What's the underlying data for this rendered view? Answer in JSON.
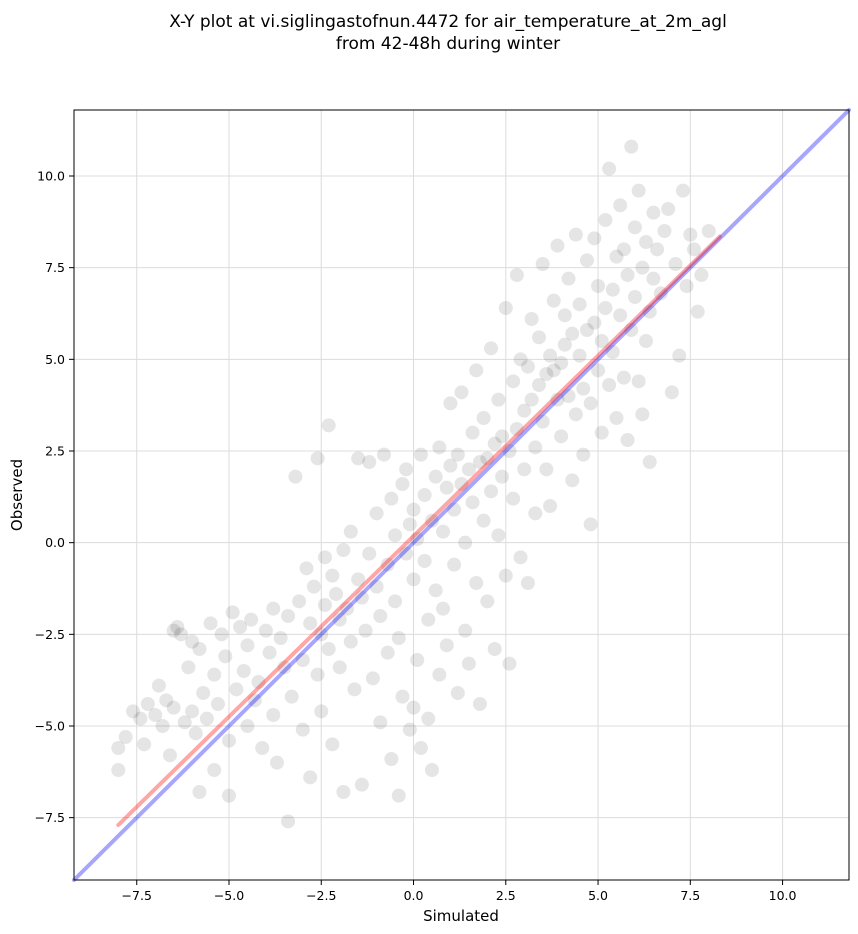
{
  "chart_data": {
    "type": "scatter",
    "title": "X-Y plot at vi.siglingastofnun.4472 for air_temperature_at_2m_agl",
    "subtitle": "from 42-48h during winter",
    "xlabel": "Simulated",
    "ylabel": "Observed",
    "xlim": [
      -9.2,
      11.8
    ],
    "ylim": [
      -9.2,
      11.8
    ],
    "x_ticks": [
      "−7.5",
      "−5.0",
      "−2.5",
      "0.0",
      "2.5",
      "5.0",
      "7.5",
      "10.0"
    ],
    "y_ticks": [
      "−7.5",
      "−5.0",
      "−2.5",
      "0.0",
      "2.5",
      "5.0",
      "7.5",
      "10.0"
    ],
    "x_tick_values": [
      -7.5,
      -5.0,
      -2.5,
      0.0,
      2.5,
      5.0,
      7.5,
      10.0
    ],
    "y_tick_values": [
      -7.5,
      -5.0,
      -2.5,
      0.0,
      2.5,
      5.0,
      7.5,
      10.0
    ],
    "grid": true,
    "point_color": "#000000",
    "point_alpha": 0.1,
    "lines": [
      {
        "color": "#0000ff",
        "alpha": 0.35,
        "x": [
          -9.2,
          11.8
        ],
        "y": [
          -9.2,
          11.8
        ]
      },
      {
        "color": "#ff0000",
        "alpha": 0.35,
        "x": [
          -8.0,
          8.3
        ],
        "y": [
          -7.7,
          8.35
        ]
      }
    ],
    "series": [
      {
        "values": [
          {
            "x": -8.0,
            "y": -5.6
          },
          {
            "x": -8.0,
            "y": -6.2
          },
          {
            "x": -7.8,
            "y": -5.3
          },
          {
            "x": -7.6,
            "y": -4.6
          },
          {
            "x": -7.4,
            "y": -4.8
          },
          {
            "x": -7.2,
            "y": -4.4
          },
          {
            "x": -7.3,
            "y": -5.5
          },
          {
            "x": -7.0,
            "y": -4.7
          },
          {
            "x": -6.9,
            "y": -3.9
          },
          {
            "x": -6.8,
            "y": -5.0
          },
          {
            "x": -6.7,
            "y": -4.3
          },
          {
            "x": -6.6,
            "y": -5.8
          },
          {
            "x": -6.5,
            "y": -4.5
          },
          {
            "x": -6.5,
            "y": -2.4
          },
          {
            "x": -6.4,
            "y": -2.3
          },
          {
            "x": -6.3,
            "y": -2.5
          },
          {
            "x": -6.2,
            "y": -4.9
          },
          {
            "x": -6.1,
            "y": -3.4
          },
          {
            "x": -6.0,
            "y": -2.7
          },
          {
            "x": -6.0,
            "y": -4.6
          },
          {
            "x": -5.9,
            "y": -5.2
          },
          {
            "x": -5.8,
            "y": -2.9
          },
          {
            "x": -5.8,
            "y": -6.8
          },
          {
            "x": -5.7,
            "y": -4.1
          },
          {
            "x": -5.6,
            "y": -4.8
          },
          {
            "x": -5.5,
            "y": -2.2
          },
          {
            "x": -5.4,
            "y": -3.6
          },
          {
            "x": -5.4,
            "y": -6.2
          },
          {
            "x": -5.3,
            "y": -4.4
          },
          {
            "x": -5.2,
            "y": -2.5
          },
          {
            "x": -5.1,
            "y": -3.1
          },
          {
            "x": -5.0,
            "y": -5.4
          },
          {
            "x": -5.0,
            "y": -6.9
          },
          {
            "x": -4.9,
            "y": -1.9
          },
          {
            "x": -4.8,
            "y": -4.0
          },
          {
            "x": -4.7,
            "y": -2.3
          },
          {
            "x": -4.6,
            "y": -3.5
          },
          {
            "x": -4.5,
            "y": -5.0
          },
          {
            "x": -4.5,
            "y": -2.8
          },
          {
            "x": -4.4,
            "y": -2.1
          },
          {
            "x": -4.3,
            "y": -4.3
          },
          {
            "x": -4.2,
            "y": -3.8
          },
          {
            "x": -4.1,
            "y": -5.6
          },
          {
            "x": -4.0,
            "y": -2.4
          },
          {
            "x": -3.9,
            "y": -3.0
          },
          {
            "x": -3.8,
            "y": -1.8
          },
          {
            "x": -3.8,
            "y": -4.7
          },
          {
            "x": -3.7,
            "y": -6.0
          },
          {
            "x": -3.6,
            "y": -2.6
          },
          {
            "x": -3.5,
            "y": -3.4
          },
          {
            "x": -3.4,
            "y": -2.0
          },
          {
            "x": -3.4,
            "y": -7.6
          },
          {
            "x": -3.3,
            "y": -4.2
          },
          {
            "x": -3.2,
            "y": 1.8
          },
          {
            "x": -3.1,
            "y": -1.6
          },
          {
            "x": -3.0,
            "y": -3.2
          },
          {
            "x": -3.0,
            "y": -5.1
          },
          {
            "x": -2.9,
            "y": -0.7
          },
          {
            "x": -2.8,
            "y": -2.2
          },
          {
            "x": -2.8,
            "y": -6.4
          },
          {
            "x": -2.7,
            "y": -1.2
          },
          {
            "x": -2.6,
            "y": -3.6
          },
          {
            "x": -2.6,
            "y": 2.3
          },
          {
            "x": -2.5,
            "y": -2.5
          },
          {
            "x": -2.5,
            "y": -4.6
          },
          {
            "x": -2.4,
            "y": -0.4
          },
          {
            "x": -2.4,
            "y": -1.7
          },
          {
            "x": -2.3,
            "y": 3.2
          },
          {
            "x": -2.3,
            "y": -2.9
          },
          {
            "x": -2.2,
            "y": -0.9
          },
          {
            "x": -2.2,
            "y": -5.5
          },
          {
            "x": -2.1,
            "y": -1.4
          },
          {
            "x": -2.0,
            "y": -3.4
          },
          {
            "x": -2.0,
            "y": -2.1
          },
          {
            "x": -1.9,
            "y": -0.2
          },
          {
            "x": -1.9,
            "y": -6.8
          },
          {
            "x": -1.8,
            "y": -1.8
          },
          {
            "x": -1.7,
            "y": -2.7
          },
          {
            "x": -1.7,
            "y": 0.3
          },
          {
            "x": -1.6,
            "y": -4.0
          },
          {
            "x": -1.5,
            "y": -1.0
          },
          {
            "x": -1.5,
            "y": 2.3
          },
          {
            "x": -1.4,
            "y": -1.5
          },
          {
            "x": -1.4,
            "y": -6.6
          },
          {
            "x": -1.3,
            "y": -2.4
          },
          {
            "x": -1.2,
            "y": -0.3
          },
          {
            "x": -1.2,
            "y": 2.2
          },
          {
            "x": -1.1,
            "y": -3.7
          },
          {
            "x": -1.0,
            "y": -1.2
          },
          {
            "x": -1.0,
            "y": 0.8
          },
          {
            "x": -0.9,
            "y": -2.0
          },
          {
            "x": -0.9,
            "y": -4.9
          },
          {
            "x": -0.8,
            "y": 2.4
          },
          {
            "x": -0.7,
            "y": -0.6
          },
          {
            "x": -0.7,
            "y": -3.0
          },
          {
            "x": -0.6,
            "y": 1.2
          },
          {
            "x": -0.6,
            "y": -5.9
          },
          {
            "x": -0.5,
            "y": -1.6
          },
          {
            "x": -0.5,
            "y": 0.2
          },
          {
            "x": -0.4,
            "y": -2.6
          },
          {
            "x": -0.4,
            "y": -6.9
          },
          {
            "x": -0.3,
            "y": 1.6
          },
          {
            "x": -0.3,
            "y": -4.2
          },
          {
            "x": -0.2,
            "y": -0.3
          },
          {
            "x": -0.2,
            "y": 2.0
          },
          {
            "x": -0.1,
            "y": 0.5
          },
          {
            "x": -0.1,
            "y": -5.1
          },
          {
            "x": 0.0,
            "y": -1.0
          },
          {
            "x": 0.0,
            "y": 0.9
          },
          {
            "x": 0.0,
            "y": -4.5
          },
          {
            "x": 0.1,
            "y": 0.1
          },
          {
            "x": 0.1,
            "y": -3.2
          },
          {
            "x": 0.2,
            "y": 2.4
          },
          {
            "x": 0.2,
            "y": -5.6
          },
          {
            "x": 0.3,
            "y": -0.5
          },
          {
            "x": 0.3,
            "y": 1.3
          },
          {
            "x": 0.4,
            "y": -2.1
          },
          {
            "x": 0.4,
            "y": -4.8
          },
          {
            "x": 0.5,
            "y": 0.6
          },
          {
            "x": 0.5,
            "y": -6.2
          },
          {
            "x": 0.6,
            "y": 1.8
          },
          {
            "x": 0.6,
            "y": -1.3
          },
          {
            "x": 0.7,
            "y": 2.6
          },
          {
            "x": 0.7,
            "y": -3.6
          },
          {
            "x": 0.8,
            "y": 0.3
          },
          {
            "x": 0.8,
            "y": -1.8
          },
          {
            "x": 0.9,
            "y": 1.5
          },
          {
            "x": 0.9,
            "y": -2.8
          },
          {
            "x": 1.0,
            "y": 2.1
          },
          {
            "x": 1.0,
            "y": 3.8
          },
          {
            "x": 1.1,
            "y": 0.9
          },
          {
            "x": 1.1,
            "y": -0.6
          },
          {
            "x": 1.2,
            "y": 2.4
          },
          {
            "x": 1.2,
            "y": -4.1
          },
          {
            "x": 1.3,
            "y": 1.6
          },
          {
            "x": 1.3,
            "y": 4.1
          },
          {
            "x": 1.4,
            "y": 0.0
          },
          {
            "x": 1.4,
            "y": -2.4
          },
          {
            "x": 1.5,
            "y": 2.0
          },
          {
            "x": 1.5,
            "y": -3.3
          },
          {
            "x": 1.6,
            "y": 3.0
          },
          {
            "x": 1.6,
            "y": 1.1
          },
          {
            "x": 1.7,
            "y": -1.1
          },
          {
            "x": 1.7,
            "y": 4.7
          },
          {
            "x": 1.8,
            "y": 2.2
          },
          {
            "x": 1.8,
            "y": -4.4
          },
          {
            "x": 1.9,
            "y": 0.6
          },
          {
            "x": 1.9,
            "y": 3.4
          },
          {
            "x": 2.0,
            "y": 2.3
          },
          {
            "x": 2.0,
            "y": -1.6
          },
          {
            "x": 2.1,
            "y": 1.4
          },
          {
            "x": 2.1,
            "y": 5.3
          },
          {
            "x": 2.2,
            "y": 2.7
          },
          {
            "x": 2.2,
            "y": -2.9
          },
          {
            "x": 2.3,
            "y": 0.2
          },
          {
            "x": 2.3,
            "y": 3.9
          },
          {
            "x": 2.4,
            "y": 2.9
          },
          {
            "x": 2.4,
            "y": 1.8
          },
          {
            "x": 2.5,
            "y": -0.9
          },
          {
            "x": 2.5,
            "y": 6.4
          },
          {
            "x": 2.6,
            "y": 2.5
          },
          {
            "x": 2.6,
            "y": -3.3
          },
          {
            "x": 2.7,
            "y": 4.4
          },
          {
            "x": 2.7,
            "y": 1.2
          },
          {
            "x": 2.8,
            "y": 3.1
          },
          {
            "x": 2.8,
            "y": 7.3
          },
          {
            "x": 2.9,
            "y": -0.4
          },
          {
            "x": 2.9,
            "y": 5.0
          },
          {
            "x": 3.0,
            "y": 3.6
          },
          {
            "x": 3.0,
            "y": 2.0
          },
          {
            "x": 3.1,
            "y": 4.8
          },
          {
            "x": 3.1,
            "y": -1.1
          },
          {
            "x": 3.2,
            "y": 3.9
          },
          {
            "x": 3.2,
            "y": 6.1
          },
          {
            "x": 3.3,
            "y": 2.6
          },
          {
            "x": 3.3,
            "y": 0.8
          },
          {
            "x": 3.4,
            "y": 4.3
          },
          {
            "x": 3.4,
            "y": 5.6
          },
          {
            "x": 3.5,
            "y": 3.3
          },
          {
            "x": 3.5,
            "y": 7.6
          },
          {
            "x": 3.6,
            "y": 4.6
          },
          {
            "x": 3.6,
            "y": 2.0
          },
          {
            "x": 3.7,
            "y": 5.1
          },
          {
            "x": 3.7,
            "y": 1.0
          },
          {
            "x": 3.8,
            "y": 4.7
          },
          {
            "x": 3.8,
            "y": 6.6
          },
          {
            "x": 3.9,
            "y": 3.9
          },
          {
            "x": 3.9,
            "y": 8.1
          },
          {
            "x": 4.0,
            "y": 4.9
          },
          {
            "x": 4.0,
            "y": 2.9
          },
          {
            "x": 4.1,
            "y": 5.4
          },
          {
            "x": 4.1,
            "y": 6.2
          },
          {
            "x": 4.2,
            "y": 4.0
          },
          {
            "x": 4.2,
            "y": 7.2
          },
          {
            "x": 4.3,
            "y": 1.7
          },
          {
            "x": 4.3,
            "y": 5.7
          },
          {
            "x": 4.4,
            "y": 3.5
          },
          {
            "x": 4.4,
            "y": 8.4
          },
          {
            "x": 4.5,
            "y": 5.1
          },
          {
            "x": 4.5,
            "y": 6.5
          },
          {
            "x": 4.6,
            "y": 4.2
          },
          {
            "x": 4.6,
            "y": 2.4
          },
          {
            "x": 4.7,
            "y": 5.8
          },
          {
            "x": 4.7,
            "y": 7.7
          },
          {
            "x": 4.8,
            "y": 3.8
          },
          {
            "x": 4.8,
            "y": 0.5
          },
          {
            "x": 4.9,
            "y": 6.0
          },
          {
            "x": 4.9,
            "y": 8.3
          },
          {
            "x": 5.0,
            "y": 4.7
          },
          {
            "x": 5.0,
            "y": 7.0
          },
          {
            "x": 5.1,
            "y": 5.5
          },
          {
            "x": 5.1,
            "y": 3.0
          },
          {
            "x": 5.2,
            "y": 6.4
          },
          {
            "x": 5.2,
            "y": 8.8
          },
          {
            "x": 5.3,
            "y": 4.3
          },
          {
            "x": 5.3,
            "y": 10.2
          },
          {
            "x": 5.4,
            "y": 6.9
          },
          {
            "x": 5.4,
            "y": 5.2
          },
          {
            "x": 5.5,
            "y": 7.8
          },
          {
            "x": 5.5,
            "y": 3.4
          },
          {
            "x": 5.6,
            "y": 6.2
          },
          {
            "x": 5.6,
            "y": 9.2
          },
          {
            "x": 5.7,
            "y": 4.5
          },
          {
            "x": 5.7,
            "y": 8.0
          },
          {
            "x": 5.8,
            "y": 7.3
          },
          {
            "x": 5.8,
            "y": 2.8
          },
          {
            "x": 5.9,
            "y": 10.8
          },
          {
            "x": 5.9,
            "y": 5.8
          },
          {
            "x": 6.0,
            "y": 8.6
          },
          {
            "x": 6.0,
            "y": 6.7
          },
          {
            "x": 6.1,
            "y": 4.4
          },
          {
            "x": 6.1,
            "y": 9.6
          },
          {
            "x": 6.2,
            "y": 7.5
          },
          {
            "x": 6.2,
            "y": 3.5
          },
          {
            "x": 6.3,
            "y": 8.2
          },
          {
            "x": 6.3,
            "y": 5.5
          },
          {
            "x": 6.4,
            "y": 6.3
          },
          {
            "x": 6.4,
            "y": 2.2
          },
          {
            "x": 6.5,
            "y": 7.2
          },
          {
            "x": 6.5,
            "y": 9.0
          },
          {
            "x": 6.6,
            "y": 8.0
          },
          {
            "x": 6.7,
            "y": 6.8
          },
          {
            "x": 6.8,
            "y": 8.5
          },
          {
            "x": 6.9,
            "y": 9.1
          },
          {
            "x": 7.0,
            "y": 4.1
          },
          {
            "x": 7.1,
            "y": 7.6
          },
          {
            "x": 7.2,
            "y": 5.1
          },
          {
            "x": 7.3,
            "y": 9.6
          },
          {
            "x": 7.4,
            "y": 7.0
          },
          {
            "x": 7.5,
            "y": 8.4
          },
          {
            "x": 7.6,
            "y": 8.0
          },
          {
            "x": 7.7,
            "y": 6.3
          },
          {
            "x": 7.8,
            "y": 7.3
          },
          {
            "x": 8.0,
            "y": 8.5
          }
        ]
      }
    ]
  }
}
